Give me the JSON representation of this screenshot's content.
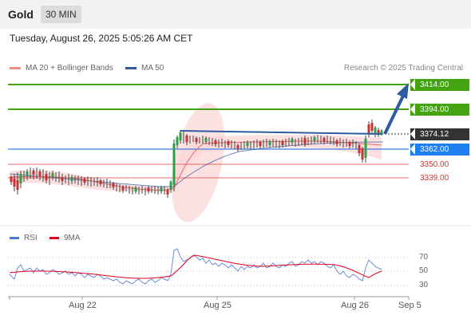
{
  "header": {
    "instrument": "Gold",
    "timeframe": "30 MIN"
  },
  "timestamp": "Tuesday, August 26, 2025 5:05:26 AM CET",
  "legend": {
    "ma20_label": "MA 20 + Bollinger Bands",
    "ma20_color": "#f28b82",
    "ma50_label": "MA 50",
    "ma50_color": "#2d5aa0",
    "research": "Research © 2025 Trading Central"
  },
  "price_levels": {
    "r2": "3414.00",
    "r1": "3394.00",
    "last": "3374.12",
    "pivot": "3362.00",
    "s1": "3350.00",
    "s2": "3339.00"
  },
  "rsi_legend": {
    "rsi_label": "RSI",
    "rsi_color": "#4a78d0",
    "ma_label": "9MA",
    "ma_color": "#e3001b"
  },
  "rsi_levels": [
    "70",
    "50",
    "30"
  ],
  "x_axis": [
    "Aug 22",
    "Aug 25",
    "Aug 26",
    "Sep 5"
  ],
  "colors": {
    "resistance": "#43a310",
    "pivot": "#5b8fe6",
    "support": "#d6322f",
    "arrow": "#2d5aa0"
  }
}
